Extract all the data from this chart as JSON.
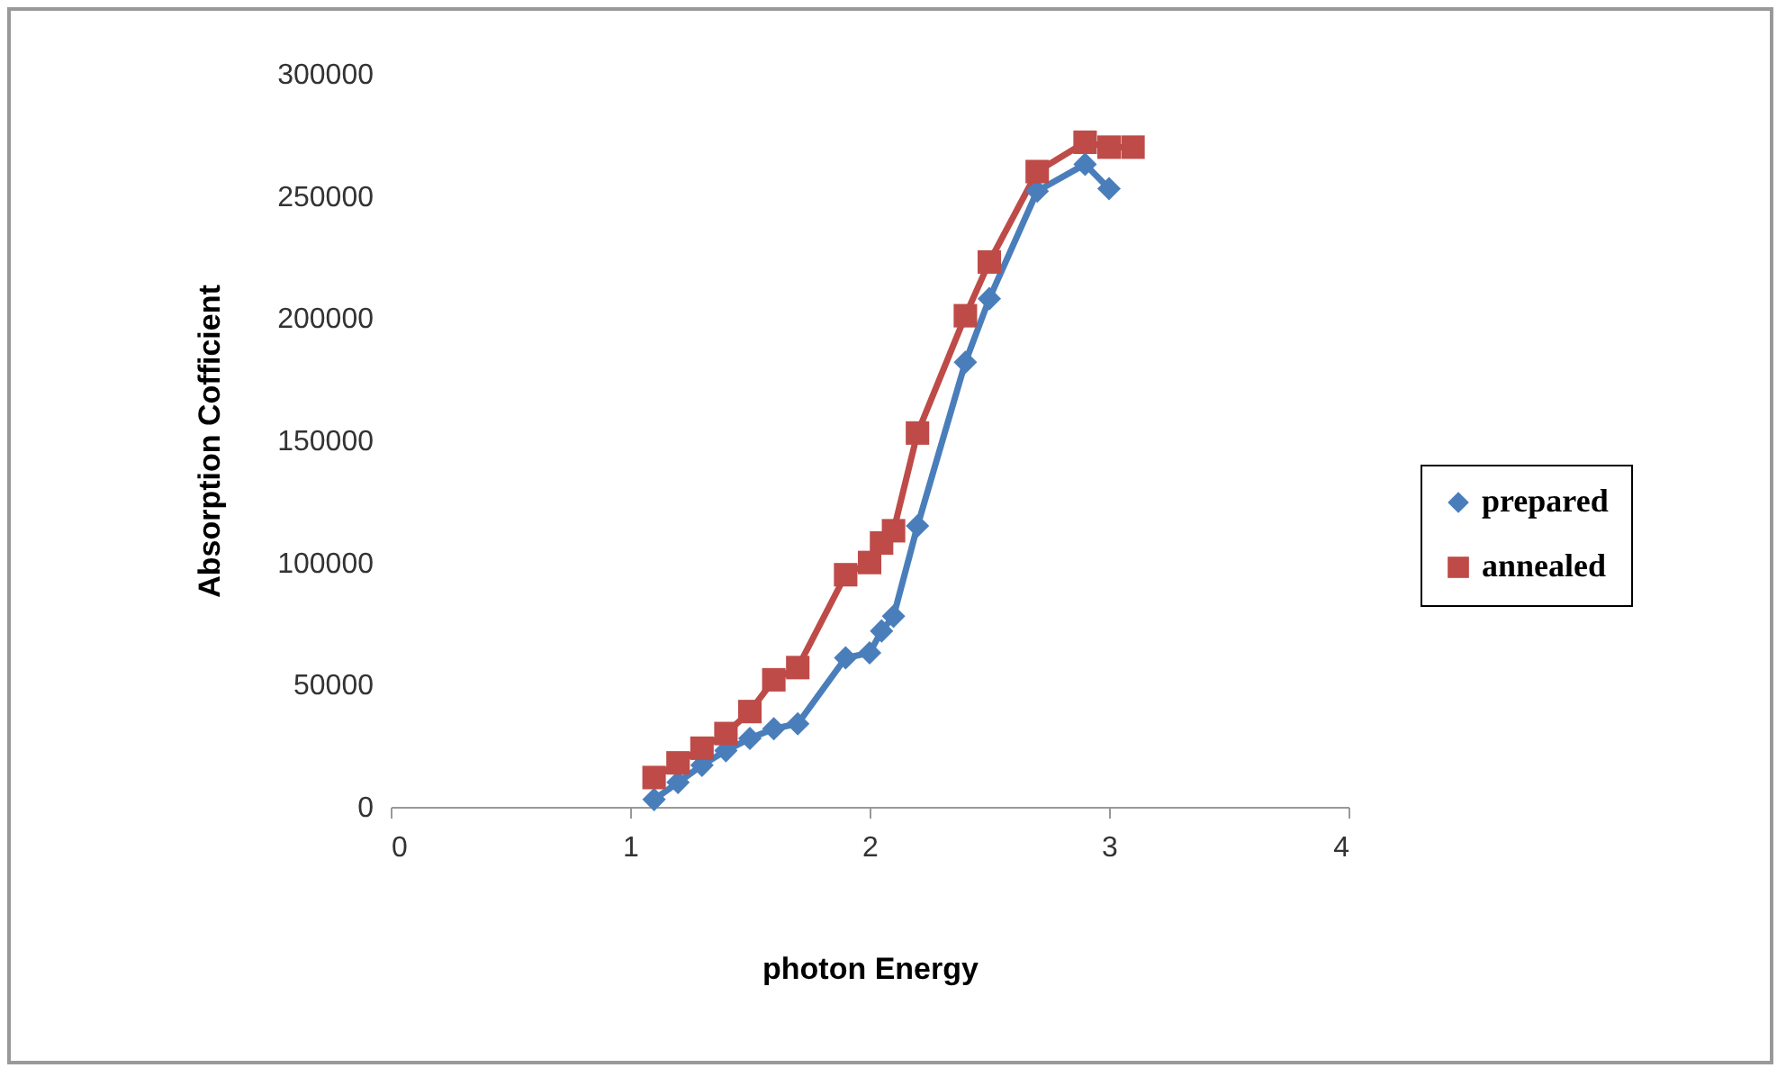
{
  "chart_data": {
    "type": "line",
    "xlabel": "photon Energy",
    "ylabel": "Absorption Cofficient",
    "xlim": [
      0,
      4
    ],
    "xticks": [
      0,
      1,
      2,
      3,
      4
    ],
    "ylim": [
      0,
      300000
    ],
    "yticks": [
      0,
      50000,
      100000,
      150000,
      200000,
      250000,
      300000
    ],
    "grid": false,
    "legend": "right",
    "series": [
      {
        "name": "prepared",
        "color": "#4a7ebb",
        "marker": "diamond",
        "x": [
          1.1,
          1.2,
          1.3,
          1.4,
          1.5,
          1.6,
          1.7,
          1.9,
          2.0,
          2.05,
          2.1,
          2.2,
          2.4,
          2.5,
          2.7,
          2.9,
          3.0
        ],
        "values": [
          3000,
          10000,
          17000,
          23000,
          28000,
          32000,
          34000,
          61000,
          63000,
          72000,
          78000,
          115000,
          182000,
          208000,
          252000,
          263000,
          253000
        ]
      },
      {
        "name": "annealed",
        "color": "#be4b48",
        "marker": "square",
        "x": [
          1.1,
          1.2,
          1.3,
          1.4,
          1.5,
          1.6,
          1.7,
          1.9,
          2.0,
          2.05,
          2.1,
          2.2,
          2.4,
          2.5,
          2.7,
          2.9,
          3.0,
          3.1
        ],
        "values": [
          12000,
          18000,
          24000,
          30000,
          39000,
          52000,
          57000,
          95000,
          100000,
          108000,
          113000,
          153000,
          201000,
          223000,
          260000,
          272000,
          270000,
          270000
        ]
      }
    ]
  }
}
